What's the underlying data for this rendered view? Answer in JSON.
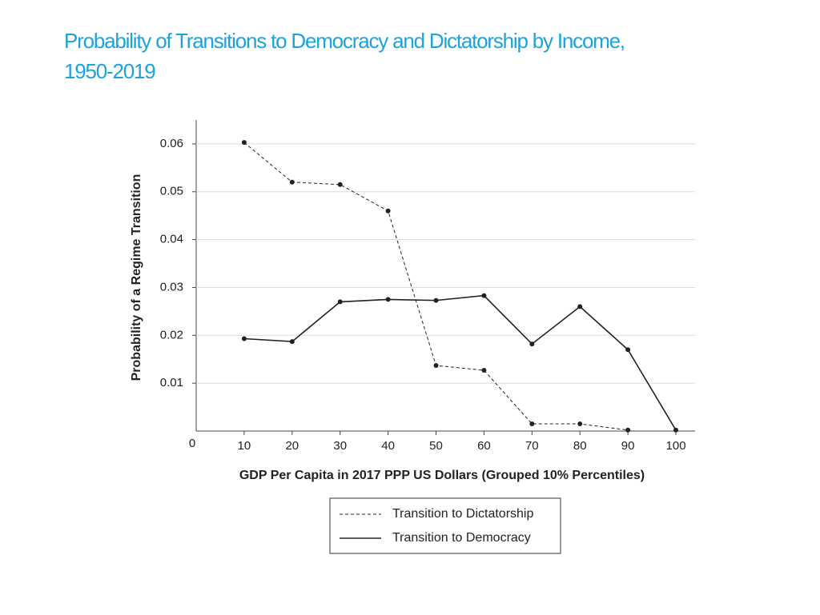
{
  "chart_data": {
    "type": "line",
    "title": "Probability of Transitions to Democracy and Dictatorship by Income, 1950-2019",
    "x_label": "GDP Per Capita in 2017 PPP US Dollars (Grouped 10% Percentiles)",
    "y_label": "Probability of a Regime Transition",
    "x": [
      10,
      20,
      30,
      40,
      50,
      60,
      70,
      80,
      90,
      100
    ],
    "series": [
      {
        "name": "Transition to Dictatorship",
        "color": "#222222",
        "line_style": "dashed",
        "values": [
          0.0603,
          0.052,
          0.0515,
          0.046,
          0.0137,
          0.0127,
          0.0015,
          0.0015,
          0.0002,
          null
        ]
      },
      {
        "name": "Transition to Democracy",
        "color": "#222222",
        "line_style": "solid",
        "values": [
          0.0193,
          0.0187,
          0.027,
          0.0275,
          0.0273,
          0.0283,
          0.0182,
          0.026,
          0.017,
          0.0002
        ]
      }
    ],
    "xlim": [
      0,
      104
    ],
    "xticks": [
      10,
      20,
      30,
      40,
      50,
      60,
      70,
      80,
      90,
      100
    ],
    "ylim": [
      0,
      0.065
    ],
    "yticks": [
      0,
      0.01,
      0.02,
      0.03,
      0.04,
      0.05,
      0.06
    ],
    "grid": true,
    "legend": "bottom"
  }
}
